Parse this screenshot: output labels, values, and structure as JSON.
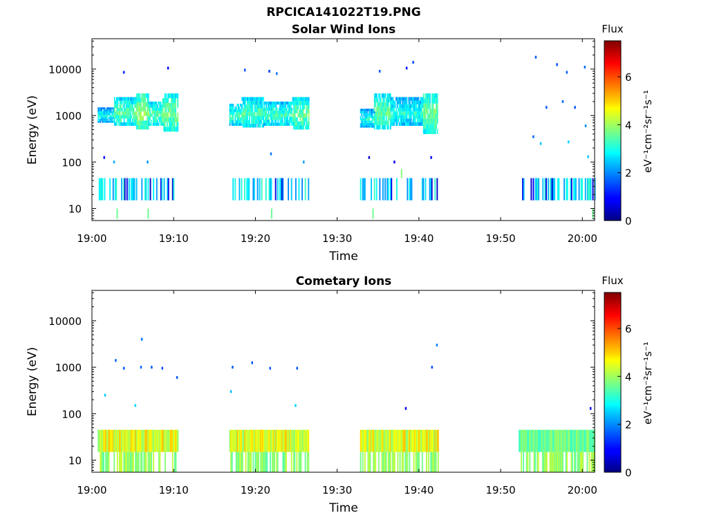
{
  "figure_title": "RPCICA141022T19.PNG",
  "chart_data": [
    {
      "type": "heatmap",
      "title": "Solar Wind Ions",
      "xlabel": "Time",
      "ylabel": "Energy (eV)",
      "yscale": "log",
      "ylim": [
        5.5,
        45000
      ],
      "xlim_minutes": [
        0,
        61.5
      ],
      "x_tick_labels": [
        "19:00",
        "19:10",
        "19:20",
        "19:30",
        "19:40",
        "19:50",
        "20:00"
      ],
      "x_tick_minutes": [
        0,
        10,
        20,
        30,
        40,
        50,
        60
      ],
      "y_tick_labels": [
        "10",
        "100",
        "1000",
        "10000"
      ],
      "y_tick_values": [
        10,
        100,
        1000,
        10000
      ],
      "colorbar": {
        "title": "Flux",
        "label": "eV⁻¹cm⁻²sr⁻¹s⁻¹",
        "range": [
          0,
          7.5
        ],
        "ticks": [
          "0",
          "2",
          "4",
          "6"
        ],
        "tick_values": [
          0,
          2,
          4,
          6
        ],
        "colormap": "jet"
      },
      "regions": [
        {
          "t": [
            0.7,
            2.7
          ],
          "e": [
            700,
            1500
          ],
          "flux": 2.6
        },
        {
          "t": [
            2.7,
            5.4
          ],
          "e": [
            600,
            2500
          ],
          "flux": 3.2
        },
        {
          "t": [
            5.4,
            6.9
          ],
          "e": [
            500,
            3000
          ],
          "flux": 3.6
        },
        {
          "t": [
            6.9,
            8.6
          ],
          "e": [
            600,
            2000
          ],
          "flux": 3.2
        },
        {
          "t": [
            8.6,
            10.5
          ],
          "e": [
            450,
            3000
          ],
          "flux": 3.4
        },
        {
          "t": [
            16.8,
            18.3
          ],
          "e": [
            600,
            1800
          ],
          "flux": 3.0
        },
        {
          "t": [
            18.3,
            21.0
          ],
          "e": [
            550,
            2500
          ],
          "flux": 3.1
        },
        {
          "t": [
            21.0,
            24.5
          ],
          "e": [
            600,
            2000
          ],
          "flux": 3.0
        },
        {
          "t": [
            24.5,
            26.5
          ],
          "e": [
            500,
            2500
          ],
          "flux": 3.3
        },
        {
          "t": [
            32.8,
            34.5
          ],
          "e": [
            550,
            1400
          ],
          "flux": 2.7
        },
        {
          "t": [
            34.5,
            36.5
          ],
          "e": [
            500,
            3000
          ],
          "flux": 3.2
        },
        {
          "t": [
            36.5,
            40.5
          ],
          "e": [
            600,
            2500
          ],
          "flux": 2.8
        },
        {
          "t": [
            40.5,
            42.3
          ],
          "e": [
            400,
            3000
          ],
          "flux": 3.4
        }
      ],
      "band_segments": [
        [
          0.7,
          10.5
        ],
        [
          16.8,
          26.5
        ],
        [
          32.8,
          42.3
        ],
        [
          52.5,
          61.5
        ]
      ],
      "band_energy": [
        15,
        45
      ],
      "points": [
        {
          "t": 3.8,
          "e": 8500,
          "flux": 1.2
        },
        {
          "t": 9.2,
          "e": 10500,
          "flux": 0.9
        },
        {
          "t": 18.6,
          "e": 9500,
          "flux": 1.5
        },
        {
          "t": 21.6,
          "e": 9000,
          "flux": 1.4
        },
        {
          "t": 22.5,
          "e": 8000,
          "flux": 1.8
        },
        {
          "t": 35.1,
          "e": 9000,
          "flux": 1.6
        },
        {
          "t": 38.4,
          "e": 10500,
          "flux": 1.1
        },
        {
          "t": 39.2,
          "e": 14000,
          "flux": 1.5
        },
        {
          "t": 54.2,
          "e": 18000,
          "flux": 1.6
        },
        {
          "t": 56.8,
          "e": 12500,
          "flux": 1.5
        },
        {
          "t": 58.0,
          "e": 8500,
          "flux": 1.6
        },
        {
          "t": 60.2,
          "e": 11000,
          "flux": 1.7
        },
        {
          "t": 1.4,
          "e": 125,
          "flux": 1.0
        },
        {
          "t": 2.6,
          "e": 100,
          "flux": 2.2
        },
        {
          "t": 6.7,
          "e": 100,
          "flux": 2.0
        },
        {
          "t": 21.8,
          "e": 150,
          "flux": 1.8
        },
        {
          "t": 25.8,
          "e": 100,
          "flux": 2.1
        },
        {
          "t": 33.8,
          "e": 125,
          "flux": 0.6
        },
        {
          "t": 36.9,
          "e": 100,
          "flux": 0.8
        },
        {
          "t": 41.4,
          "e": 125,
          "flux": 0.9
        },
        {
          "t": 54.8,
          "e": 250,
          "flux": 2.4
        },
        {
          "t": 58.2,
          "e": 270,
          "flux": 2.5
        },
        {
          "t": 60.6,
          "e": 130,
          "flux": 2.4
        },
        {
          "t": 53.9,
          "e": 350,
          "flux": 1.7
        },
        {
          "t": 55.5,
          "e": 1500,
          "flux": 1.6
        },
        {
          "t": 57.5,
          "e": 2000,
          "flux": 1.7
        },
        {
          "t": 59.0,
          "e": 1500,
          "flux": 1.5
        },
        {
          "t": 60.3,
          "e": 600,
          "flux": 2.0
        }
      ],
      "spikes": [
        {
          "t": 3.0,
          "e": [
            6,
            10
          ],
          "flux": 3.6
        },
        {
          "t": 6.8,
          "e": [
            6,
            10
          ],
          "flux": 3.6
        },
        {
          "t": 21.9,
          "e": [
            6,
            10
          ],
          "flux": 3.6
        },
        {
          "t": 34.3,
          "e": [
            6,
            10
          ],
          "flux": 3.6
        },
        {
          "t": 37.8,
          "e": [
            45,
            70
          ],
          "flux": 3.8
        },
        {
          "t": 61.2,
          "e": [
            6,
            10
          ],
          "flux": 3.6
        }
      ]
    },
    {
      "type": "heatmap",
      "title": "Cometary Ions",
      "xlabel": "Time",
      "ylabel": "Energy (eV)",
      "yscale": "log",
      "ylim": [
        5.5,
        45000
      ],
      "xlim_minutes": [
        0,
        61.5
      ],
      "x_tick_labels": [
        "19:00",
        "19:10",
        "19:20",
        "19:30",
        "19:40",
        "19:50",
        "20:00"
      ],
      "x_tick_minutes": [
        0,
        10,
        20,
        30,
        40,
        50,
        60
      ],
      "y_tick_labels": [
        "10",
        "100",
        "1000",
        "10000"
      ],
      "y_tick_values": [
        10,
        100,
        1000,
        10000
      ],
      "colorbar": {
        "title": "Flux",
        "label": "eV⁻¹cm⁻²sr⁻¹s⁻¹",
        "range": [
          0,
          7.5
        ],
        "ticks": [
          "0",
          "2",
          "4",
          "6"
        ],
        "tick_values": [
          0,
          2,
          4,
          6
        ],
        "colormap": "jet"
      },
      "band_segments": [
        [
          0.7,
          10.5
        ],
        [
          16.8,
          26.5
        ],
        [
          32.8,
          42.3
        ],
        [
          52.2,
          61.5
        ]
      ],
      "band_energy": [
        15,
        45
      ],
      "lower_band_energy": [
        5.5,
        15
      ],
      "points": [
        {
          "t": 6.0,
          "e": 4000,
          "flux": 1.8
        },
        {
          "t": 2.8,
          "e": 1400,
          "flux": 1.7
        },
        {
          "t": 3.8,
          "e": 950,
          "flux": 1.6
        },
        {
          "t": 5.9,
          "e": 1000,
          "flux": 1.7
        },
        {
          "t": 7.2,
          "e": 1000,
          "flux": 1.6
        },
        {
          "t": 8.5,
          "e": 950,
          "flux": 1.5
        },
        {
          "t": 10.3,
          "e": 600,
          "flux": 1.6
        },
        {
          "t": 17.1,
          "e": 1000,
          "flux": 1.6
        },
        {
          "t": 19.5,
          "e": 1250,
          "flux": 1.6
        },
        {
          "t": 21.7,
          "e": 950,
          "flux": 1.6
        },
        {
          "t": 25.0,
          "e": 950,
          "flux": 1.6
        },
        {
          "t": 41.5,
          "e": 1000,
          "flux": 1.5
        },
        {
          "t": 42.1,
          "e": 3000,
          "flux": 1.9
        },
        {
          "t": 1.5,
          "e": 250,
          "flux": 2.4
        },
        {
          "t": 16.9,
          "e": 300,
          "flux": 2.3
        },
        {
          "t": 5.2,
          "e": 150,
          "flux": 2.5
        },
        {
          "t": 24.8,
          "e": 150,
          "flux": 2.5
        },
        {
          "t": 38.3,
          "e": 130,
          "flux": 0.8
        },
        {
          "t": 60.9,
          "e": 130,
          "flux": 0.9
        }
      ]
    }
  ]
}
